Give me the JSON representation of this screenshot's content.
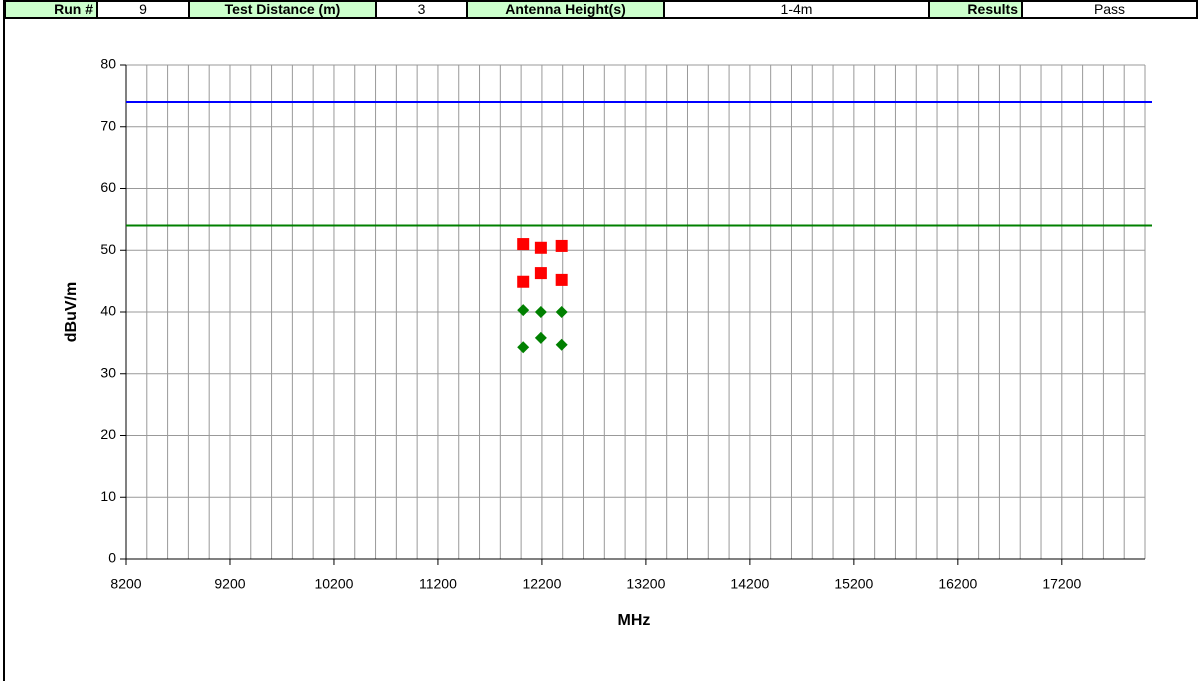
{
  "header": {
    "fields": [
      {
        "label": "Run #",
        "value": "9"
      },
      {
        "label": "Test Distance (m)",
        "value": "3"
      },
      {
        "label": "Antenna Height(s)",
        "value": "1-4m"
      },
      {
        "label": "Results",
        "value": "Pass"
      }
    ]
  },
  "chart_data": {
    "type": "scatter",
    "xlabel": "MHz",
    "ylabel": "dBuV/m",
    "xlim": [
      8200,
      18000
    ],
    "ylim": [
      0,
      80
    ],
    "xticks": [
      8200,
      9200,
      10200,
      11200,
      12200,
      13200,
      14200,
      15200,
      16200,
      17200
    ],
    "xgrid": [
      8200,
      8400,
      8600,
      8800,
      9000,
      9200,
      9400,
      9600,
      9800,
      10000,
      10200,
      10400,
      10600,
      10800,
      11000,
      11200,
      11400,
      11600,
      11800,
      12000,
      12200,
      12400,
      12600,
      12800,
      13000,
      13200,
      13400,
      13600,
      13800,
      14000,
      14200,
      14400,
      14600,
      14800,
      15000,
      15200,
      15400,
      15600,
      15800,
      16000,
      16200,
      16400,
      16600,
      16800,
      17000,
      17200,
      17400,
      17600,
      17800,
      18000
    ],
    "yticks": [
      0,
      10,
      20,
      30,
      40,
      50,
      60,
      70,
      80
    ],
    "grid": true,
    "limit_lines": [
      {
        "value": 74,
        "color": "#0000ff"
      },
      {
        "value": 54,
        "color": "#008000"
      }
    ],
    "series": [
      {
        "color": "#ff0000",
        "marker": "square",
        "x": [
          12020,
          12190,
          12390,
          12020,
          12190,
          12390
        ],
        "values": [
          51.0,
          50.4,
          50.7,
          44.9,
          46.3,
          45.2
        ]
      },
      {
        "color": "#008000",
        "marker": "diamond",
        "x": [
          12020,
          12190,
          12390,
          12020,
          12190,
          12390
        ],
        "values": [
          40.3,
          40.0,
          40.0,
          34.3,
          35.8,
          34.7
        ]
      }
    ]
  }
}
